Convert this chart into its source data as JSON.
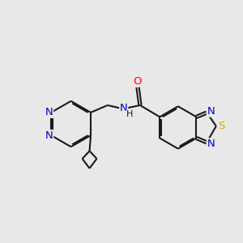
{
  "bg_color": "#e8e8e8",
  "bond_color": "#1a1a1a",
  "N_color": "#0000cc",
  "O_color": "#ff0000",
  "S_color": "#ccaa00",
  "lw": 1.5,
  "dbo": 0.055,
  "fs": 9.5,
  "xlim": [
    0,
    10
  ],
  "ylim": [
    2.5,
    8.5
  ]
}
